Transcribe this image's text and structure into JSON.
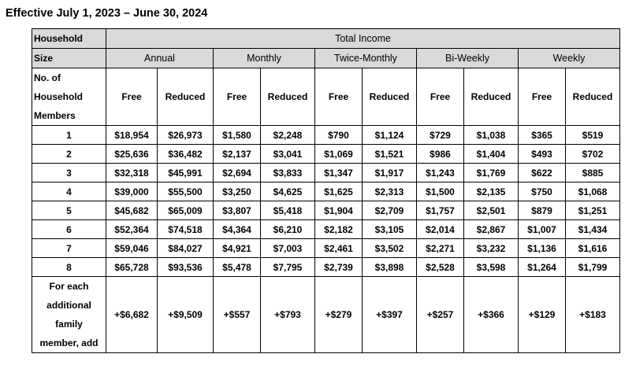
{
  "title": "Effective July 1, 2023 – June 30, 2024",
  "header": {
    "household_line1": "Household",
    "household_line2": "Size",
    "total_income": "Total Income",
    "periods": [
      "Annual",
      "Monthly",
      "Twice-Monthly",
      "Bi-Weekly",
      "Weekly"
    ],
    "members_label_lines": [
      "No. of",
      "Household",
      "Members"
    ],
    "free": "Free",
    "reduced": "Reduced"
  },
  "rows": [
    {
      "size": "1",
      "values": [
        "$18,954",
        "$26,973",
        "$1,580",
        "$2,248",
        "$790",
        "$1,124",
        "$729",
        "$1,038",
        "$365",
        "$519"
      ]
    },
    {
      "size": "2",
      "values": [
        "$25,636",
        "$36,482",
        "$2,137",
        "$3,041",
        "$1,069",
        "$1,521",
        "$986",
        "$1,404",
        "$493",
        "$702"
      ]
    },
    {
      "size": "3",
      "values": [
        "$32,318",
        "$45,991",
        "$2,694",
        "$3,833",
        "$1,347",
        "$1,917",
        "$1,243",
        "$1,769",
        "$622",
        "$885"
      ]
    },
    {
      "size": "4",
      "values": [
        "$39,000",
        "$55,500",
        "$3,250",
        "$4,625",
        "$1,625",
        "$2,313",
        "$1,500",
        "$2,135",
        "$750",
        "$1,068"
      ]
    },
    {
      "size": "5",
      "values": [
        "$45,682",
        "$65,009",
        "$3,807",
        "$5,418",
        "$1,904",
        "$2,709",
        "$1,757",
        "$2,501",
        "$879",
        "$1,251"
      ]
    },
    {
      "size": "6",
      "values": [
        "$52,364",
        "$74,518",
        "$4,364",
        "$6,210",
        "$2,182",
        "$3,105",
        "$2,014",
        "$2,867",
        "$1,007",
        "$1,434"
      ]
    },
    {
      "size": "7",
      "values": [
        "$59,046",
        "$84,027",
        "$4,921",
        "$7,003",
        "$2,461",
        "$3,502",
        "$2,271",
        "$3,232",
        "$1,136",
        "$1,616"
      ]
    },
    {
      "size": "8",
      "values": [
        "$65,728",
        "$93,536",
        "$5,478",
        "$7,795",
        "$2,739",
        "$3,898",
        "$2,528",
        "$3,598",
        "$1,264",
        "$1,799"
      ]
    }
  ],
  "additional": {
    "label_lines": [
      "For each",
      "additional",
      "family",
      "member, add"
    ],
    "values": [
      "+$6,682",
      "+$9,509",
      "+$557",
      "+$793",
      "+$279",
      "+$397",
      "+$257",
      "+$366",
      "+$129",
      "+$183"
    ]
  }
}
